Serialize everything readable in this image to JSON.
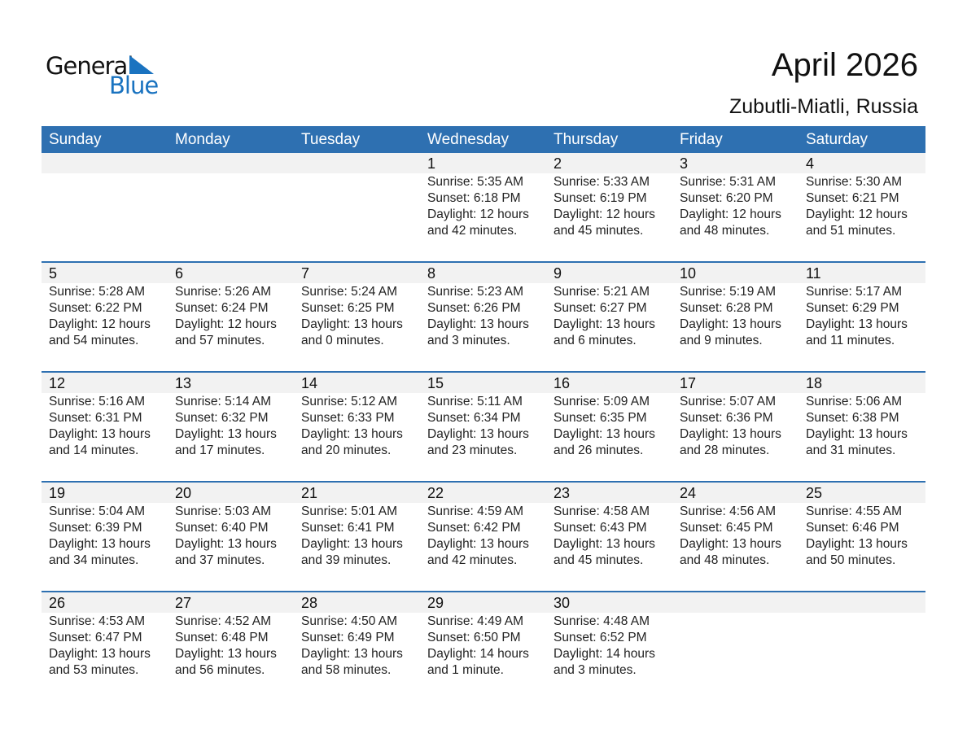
{
  "logo": {
    "line1": "General",
    "line2": "Blue"
  },
  "title": "April 2026",
  "location": "Zubutli-Miatli, Russia",
  "days": [
    "Sunday",
    "Monday",
    "Tuesday",
    "Wednesday",
    "Thursday",
    "Friday",
    "Saturday"
  ],
  "weeks": [
    [
      null,
      null,
      null,
      {
        "d": "1",
        "sr": "Sunrise: 5:35 AM",
        "ss": "Sunset: 6:18 PM",
        "dl": "Daylight: 12 hours",
        "dm": "and 42 minutes."
      },
      {
        "d": "2",
        "sr": "Sunrise: 5:33 AM",
        "ss": "Sunset: 6:19 PM",
        "dl": "Daylight: 12 hours",
        "dm": "and 45 minutes."
      },
      {
        "d": "3",
        "sr": "Sunrise: 5:31 AM",
        "ss": "Sunset: 6:20 PM",
        "dl": "Daylight: 12 hours",
        "dm": "and 48 minutes."
      },
      {
        "d": "4",
        "sr": "Sunrise: 5:30 AM",
        "ss": "Sunset: 6:21 PM",
        "dl": "Daylight: 12 hours",
        "dm": "and 51 minutes."
      }
    ],
    [
      {
        "d": "5",
        "sr": "Sunrise: 5:28 AM",
        "ss": "Sunset: 6:22 PM",
        "dl": "Daylight: 12 hours",
        "dm": "and 54 minutes."
      },
      {
        "d": "6",
        "sr": "Sunrise: 5:26 AM",
        "ss": "Sunset: 6:24 PM",
        "dl": "Daylight: 12 hours",
        "dm": "and 57 minutes."
      },
      {
        "d": "7",
        "sr": "Sunrise: 5:24 AM",
        "ss": "Sunset: 6:25 PM",
        "dl": "Daylight: 13 hours",
        "dm": "and 0 minutes."
      },
      {
        "d": "8",
        "sr": "Sunrise: 5:23 AM",
        "ss": "Sunset: 6:26 PM",
        "dl": "Daylight: 13 hours",
        "dm": "and 3 minutes."
      },
      {
        "d": "9",
        "sr": "Sunrise: 5:21 AM",
        "ss": "Sunset: 6:27 PM",
        "dl": "Daylight: 13 hours",
        "dm": "and 6 minutes."
      },
      {
        "d": "10",
        "sr": "Sunrise: 5:19 AM",
        "ss": "Sunset: 6:28 PM",
        "dl": "Daylight: 13 hours",
        "dm": "and 9 minutes."
      },
      {
        "d": "11",
        "sr": "Sunrise: 5:17 AM",
        "ss": "Sunset: 6:29 PM",
        "dl": "Daylight: 13 hours",
        "dm": "and 11 minutes."
      }
    ],
    [
      {
        "d": "12",
        "sr": "Sunrise: 5:16 AM",
        "ss": "Sunset: 6:31 PM",
        "dl": "Daylight: 13 hours",
        "dm": "and 14 minutes."
      },
      {
        "d": "13",
        "sr": "Sunrise: 5:14 AM",
        "ss": "Sunset: 6:32 PM",
        "dl": "Daylight: 13 hours",
        "dm": "and 17 minutes."
      },
      {
        "d": "14",
        "sr": "Sunrise: 5:12 AM",
        "ss": "Sunset: 6:33 PM",
        "dl": "Daylight: 13 hours",
        "dm": "and 20 minutes."
      },
      {
        "d": "15",
        "sr": "Sunrise: 5:11 AM",
        "ss": "Sunset: 6:34 PM",
        "dl": "Daylight: 13 hours",
        "dm": "and 23 minutes."
      },
      {
        "d": "16",
        "sr": "Sunrise: 5:09 AM",
        "ss": "Sunset: 6:35 PM",
        "dl": "Daylight: 13 hours",
        "dm": "and 26 minutes."
      },
      {
        "d": "17",
        "sr": "Sunrise: 5:07 AM",
        "ss": "Sunset: 6:36 PM",
        "dl": "Daylight: 13 hours",
        "dm": "and 28 minutes."
      },
      {
        "d": "18",
        "sr": "Sunrise: 5:06 AM",
        "ss": "Sunset: 6:38 PM",
        "dl": "Daylight: 13 hours",
        "dm": "and 31 minutes."
      }
    ],
    [
      {
        "d": "19",
        "sr": "Sunrise: 5:04 AM",
        "ss": "Sunset: 6:39 PM",
        "dl": "Daylight: 13 hours",
        "dm": "and 34 minutes."
      },
      {
        "d": "20",
        "sr": "Sunrise: 5:03 AM",
        "ss": "Sunset: 6:40 PM",
        "dl": "Daylight: 13 hours",
        "dm": "and 37 minutes."
      },
      {
        "d": "21",
        "sr": "Sunrise: 5:01 AM",
        "ss": "Sunset: 6:41 PM",
        "dl": "Daylight: 13 hours",
        "dm": "and 39 minutes."
      },
      {
        "d": "22",
        "sr": "Sunrise: 4:59 AM",
        "ss": "Sunset: 6:42 PM",
        "dl": "Daylight: 13 hours",
        "dm": "and 42 minutes."
      },
      {
        "d": "23",
        "sr": "Sunrise: 4:58 AM",
        "ss": "Sunset: 6:43 PM",
        "dl": "Daylight: 13 hours",
        "dm": "and 45 minutes."
      },
      {
        "d": "24",
        "sr": "Sunrise: 4:56 AM",
        "ss": "Sunset: 6:45 PM",
        "dl": "Daylight: 13 hours",
        "dm": "and 48 minutes."
      },
      {
        "d": "25",
        "sr": "Sunrise: 4:55 AM",
        "ss": "Sunset: 6:46 PM",
        "dl": "Daylight: 13 hours",
        "dm": "and 50 minutes."
      }
    ],
    [
      {
        "d": "26",
        "sr": "Sunrise: 4:53 AM",
        "ss": "Sunset: 6:47 PM",
        "dl": "Daylight: 13 hours",
        "dm": "and 53 minutes."
      },
      {
        "d": "27",
        "sr": "Sunrise: 4:52 AM",
        "ss": "Sunset: 6:48 PM",
        "dl": "Daylight: 13 hours",
        "dm": "and 56 minutes."
      },
      {
        "d": "28",
        "sr": "Sunrise: 4:50 AM",
        "ss": "Sunset: 6:49 PM",
        "dl": "Daylight: 13 hours",
        "dm": "and 58 minutes."
      },
      {
        "d": "29",
        "sr": "Sunrise: 4:49 AM",
        "ss": "Sunset: 6:50 PM",
        "dl": "Daylight: 14 hours",
        "dm": "and 1 minute."
      },
      {
        "d": "30",
        "sr": "Sunrise: 4:48 AM",
        "ss": "Sunset: 6:52 PM",
        "dl": "Daylight: 14 hours",
        "dm": "and 3 minutes."
      },
      null,
      null
    ]
  ],
  "colors": {
    "header": "#2e70b1",
    "logo_blue": "#1a73c0",
    "date_band": "#f2f2f2"
  }
}
